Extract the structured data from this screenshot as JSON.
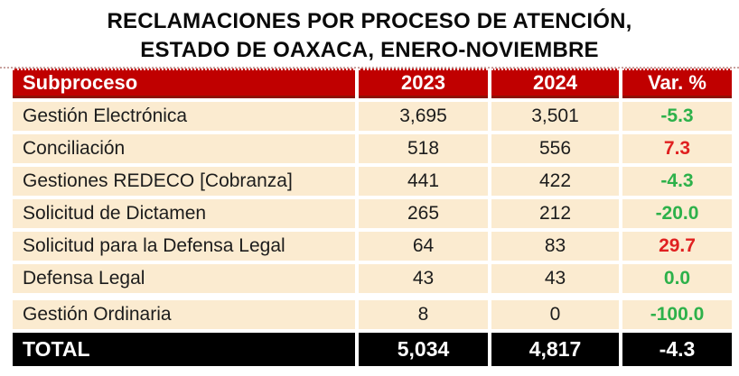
{
  "title": {
    "line1": "RECLAMACIONES POR PROCESO DE ATENCIÓN,",
    "line2": "ESTADO DE OAXACA, ENERO-NOVIEMBRE"
  },
  "table": {
    "headers": [
      "Subproceso",
      "2023",
      "2024",
      "Var. %"
    ],
    "rows": [
      {
        "label": "Gestión Electrónica",
        "y2023": "3,695",
        "y2024": "3,501",
        "var": "-5.3",
        "var_color": "green"
      },
      {
        "label": "Conciliación",
        "y2023": "518",
        "y2024": "556",
        "var": "7.3",
        "var_color": "red"
      },
      {
        "label": "Gestiones REDECO [Cobranza]",
        "y2023": "441",
        "y2024": "422",
        "var": "-4.3",
        "var_color": "green"
      },
      {
        "label": "Solicitud de Dictamen",
        "y2023": "265",
        "y2024": "212",
        "var": "-20.0",
        "var_color": "green"
      },
      {
        "label": "Solicitud para la Defensa Legal",
        "y2023": "64",
        "y2024": "83",
        "var": "29.7",
        "var_color": "red"
      },
      {
        "label": "Defensa Legal",
        "y2023": "43",
        "y2024": "43",
        "var": "0.0",
        "var_color": "green"
      },
      {
        "label": "Gestión Ordinaria",
        "y2023": "8",
        "y2024": "0",
        "var": "-100.0",
        "var_color": "green"
      }
    ],
    "total": {
      "label": "TOTAL",
      "y2023": "5,034",
      "y2024": "4,817",
      "var": "-4.3"
    }
  },
  "colors": {
    "header_bg": "#C00000",
    "header_border": "#8E1206",
    "row_bg": "#FBEBD0",
    "total_bg": "#000000",
    "positive_var_red": "#E02020",
    "negative_var_green": "#2DB14A"
  },
  "chart_data": {
    "type": "table",
    "title": "RECLAMACIONES POR PROCESO DE ATENCIÓN, ESTADO DE OAXACA, ENERO-NOVIEMBRE",
    "columns": [
      "Subproceso",
      "2023",
      "2024",
      "Var. %"
    ],
    "rows": [
      [
        "Gestión Electrónica",
        3695,
        3501,
        -5.3
      ],
      [
        "Conciliación",
        518,
        556,
        7.3
      ],
      [
        "Gestiones REDECO [Cobranza]",
        441,
        422,
        -4.3
      ],
      [
        "Solicitud de Dictamen",
        265,
        212,
        -20.0
      ],
      [
        "Solicitud para la Defensa Legal",
        64,
        83,
        29.7
      ],
      [
        "Defensa Legal",
        43,
        43,
        0.0
      ],
      [
        "Gestión Ordinaria",
        8,
        0,
        -100.0
      ]
    ],
    "total": [
      "TOTAL",
      5034,
      4817,
      -4.3
    ],
    "legend_note_colors": {
      "positive_change": "#E02020",
      "negative_or_zero_change": "#2DB14A"
    }
  }
}
